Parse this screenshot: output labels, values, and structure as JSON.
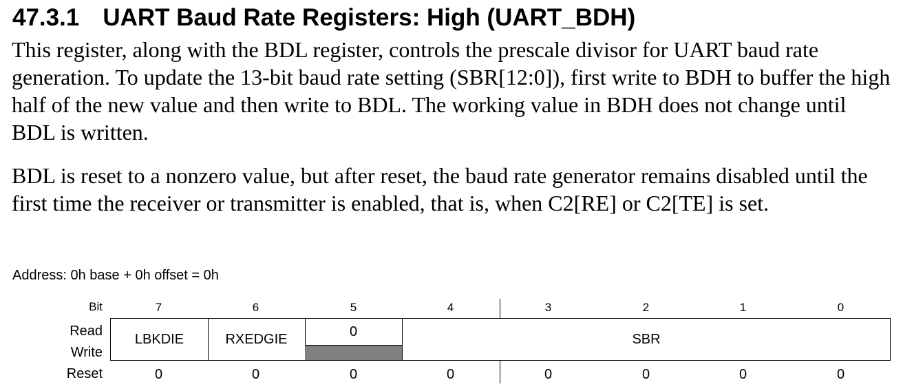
{
  "section": {
    "number": "47.3.1",
    "title": "UART Baud Rate Registers: High (UART_BDH)"
  },
  "paragraphs": [
    "This register, along with the BDL register, controls the prescale divisor for UART baud rate generation. To update the 13-bit baud rate setting (SBR[12:0]), first write to BDH to buffer the high half of the new value and then write to BDL. The working value in BDH does not change until BDL is written.",
    "BDL is reset to a nonzero value, but after reset, the baud rate generator remains disabled until the first time the receiver or transmitter is enabled, that is, when C2[RE] or C2[TE] is set."
  ],
  "address_line": "Address: 0h base + 0h offset = 0h",
  "register": {
    "labels": {
      "bit": "Bit",
      "read": "Read",
      "write": "Write",
      "reset": "Reset"
    },
    "bits": [
      "7",
      "6",
      "5",
      "4",
      "3",
      "2",
      "1",
      "0"
    ],
    "fields": {
      "lbkdie": "LBKDIE",
      "rxedgie": "RXEDGIE",
      "reserved_read_value": "0",
      "sbr": "SBR"
    },
    "reset_values": [
      "0",
      "0",
      "0",
      "0",
      "0",
      "0",
      "0",
      "0"
    ],
    "colors": {
      "reserved_write_fill": "#808080"
    }
  }
}
